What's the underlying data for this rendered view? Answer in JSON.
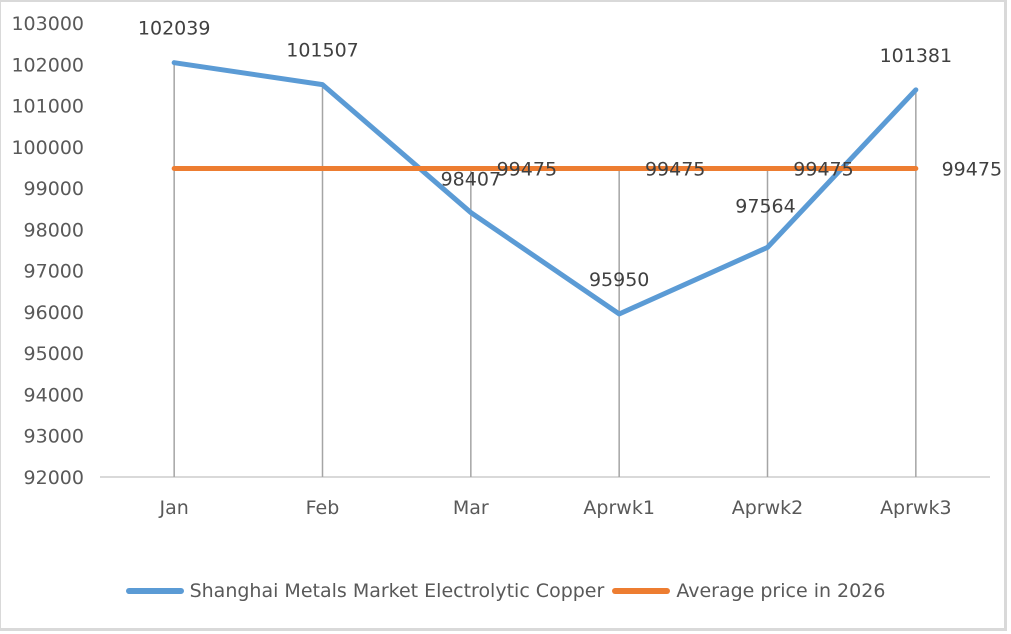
{
  "chart_data": {
    "type": "line",
    "title": "",
    "xlabel": "",
    "ylabel": "",
    "categories": [
      "Jan",
      "Feb",
      "Mar",
      "Aprwk1",
      "Aprwk2",
      "Aprwk3"
    ],
    "series": [
      {
        "name": "Shanghai Metals Market Electrolytic Copper",
        "color": "#5b9bd5",
        "values": [
          102039,
          101507,
          98407,
          95950,
          97564,
          101381
        ]
      },
      {
        "name": "Average price in 2026",
        "color": "#ed7d31",
        "values": [
          99475,
          99475,
          99475,
          99475,
          99475,
          99475
        ]
      }
    ],
    "ylim": [
      92000,
      103000
    ],
    "yticks": [
      92000,
      93000,
      94000,
      95000,
      96000,
      97000,
      98000,
      99000,
      100000,
      101000,
      102000,
      103000
    ],
    "grid": false,
    "drop_lines": true,
    "data_labels": true,
    "legend_position": "bottom"
  },
  "legend": {
    "items": [
      {
        "label": "Shanghai Metals Market Electrolytic Copper",
        "color": "#5b9bd5"
      },
      {
        "label": "Average price in 2026",
        "color": "#ed7d31"
      }
    ]
  }
}
